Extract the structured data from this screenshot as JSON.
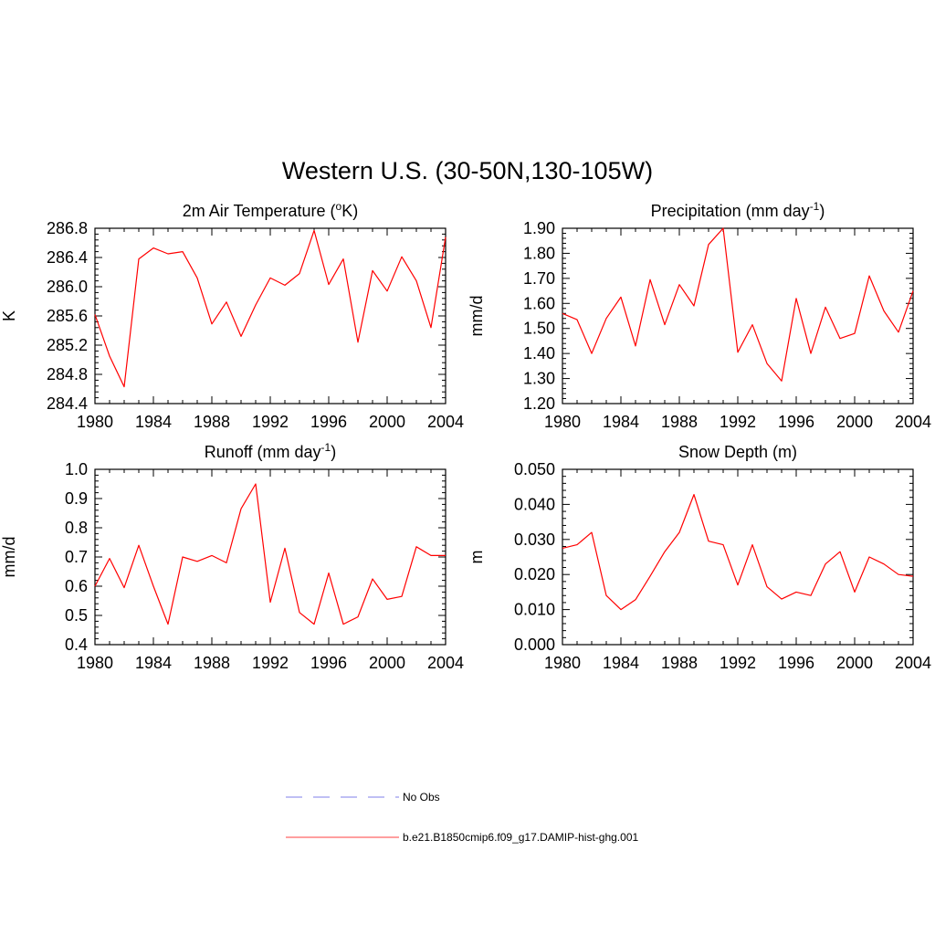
{
  "figure": {
    "title": "Western U.S. (30-50N,130-105W)"
  },
  "chart_data": [
    {
      "type": "line",
      "title": "2m Air Temperature (",
      "title_sup": "o",
      "title_tail": "K)",
      "ylabel": "K",
      "x": [
        1980,
        1981,
        1982,
        1983,
        1984,
        1985,
        1986,
        1987,
        1988,
        1989,
        1990,
        1991,
        1992,
        1993,
        1994,
        1995,
        1996,
        1997,
        1998,
        1999,
        2000,
        2001,
        2002,
        2003,
        2004
      ],
      "xlim": [
        1980,
        2004
      ],
      "xticks": [
        1980,
        1984,
        1988,
        1992,
        1996,
        2000,
        2004
      ],
      "ylim": [
        284.4,
        286.8
      ],
      "yticks": [
        "284.4",
        "284.8",
        "285.2",
        "285.6",
        "286.0",
        "286.4",
        "286.8"
      ],
      "series": [
        {
          "values": [
            285.62,
            285.05,
            284.63,
            286.38,
            286.53,
            286.45,
            286.48,
            286.12,
            285.49,
            285.79,
            285.32,
            285.75,
            286.12,
            286.02,
            286.18,
            286.77,
            286.03,
            286.38,
            285.24,
            286.22,
            285.94,
            286.41,
            286.08,
            285.44,
            286.68
          ],
          "color": "#ff0000"
        }
      ]
    },
    {
      "type": "line",
      "title": "Precipitation (mm day",
      "title_sup": "-1",
      "title_tail": ")",
      "ylabel": "mm/d",
      "x": [
        1980,
        1981,
        1982,
        1983,
        1984,
        1985,
        1986,
        1987,
        1988,
        1989,
        1990,
        1991,
        1992,
        1993,
        1994,
        1995,
        1996,
        1997,
        1998,
        1999,
        2000,
        2001,
        2002,
        2003,
        2004
      ],
      "xlim": [
        1980,
        2004
      ],
      "xticks": [
        1980,
        1984,
        1988,
        1992,
        1996,
        2000,
        2004
      ],
      "ylim": [
        1.2,
        1.9
      ],
      "yticks": [
        "1.20",
        "1.30",
        "1.40",
        "1.50",
        "1.60",
        "1.70",
        "1.80",
        "1.90"
      ],
      "series": [
        {
          "values": [
            1.56,
            1.535,
            1.4,
            1.54,
            1.625,
            1.43,
            1.695,
            1.515,
            1.675,
            1.59,
            1.835,
            1.9,
            1.405,
            1.515,
            1.36,
            1.29,
            1.62,
            1.4,
            1.585,
            1.46,
            1.48,
            1.71,
            1.57,
            1.485,
            1.65
          ],
          "color": "#ff0000"
        }
      ]
    },
    {
      "type": "line",
      "title": "Runoff (mm day",
      "title_sup": "-1",
      "title_tail": ")",
      "ylabel": "mm/d",
      "x": [
        1980,
        1981,
        1982,
        1983,
        1984,
        1985,
        1986,
        1987,
        1988,
        1989,
        1990,
        1991,
        1992,
        1993,
        1994,
        1995,
        1996,
        1997,
        1998,
        1999,
        2000,
        2001,
        2002,
        2003,
        2004
      ],
      "xlim": [
        1980,
        2004
      ],
      "xticks": [
        1980,
        1984,
        1988,
        1992,
        1996,
        2000,
        2004
      ],
      "ylim": [
        0.4,
        1.0
      ],
      "yticks": [
        "0.4",
        "0.5",
        "0.6",
        "0.7",
        "0.8",
        "0.9",
        "1.0"
      ],
      "series": [
        {
          "values": [
            0.6,
            0.695,
            0.595,
            0.74,
            0.6,
            0.47,
            0.7,
            0.685,
            0.705,
            0.68,
            0.865,
            0.95,
            0.545,
            0.73,
            0.51,
            0.47,
            0.645,
            0.47,
            0.495,
            0.625,
            0.555,
            0.565,
            0.735,
            0.705,
            0.705
          ],
          "color": "#ff0000"
        }
      ]
    },
    {
      "type": "line",
      "title": "Snow Depth (m)",
      "title_sup": "",
      "title_tail": "",
      "ylabel": "m",
      "x": [
        1980,
        1981,
        1982,
        1983,
        1984,
        1985,
        1986,
        1987,
        1988,
        1989,
        1990,
        1991,
        1992,
        1993,
        1994,
        1995,
        1996,
        1997,
        1998,
        1999,
        2000,
        2001,
        2002,
        2003,
        2004
      ],
      "xlim": [
        1980,
        2004
      ],
      "xticks": [
        1980,
        1984,
        1988,
        1992,
        1996,
        2000,
        2004
      ],
      "ylim": [
        0.0,
        0.05
      ],
      "yticks": [
        "0.000",
        "0.010",
        "0.020",
        "0.030",
        "0.040",
        "0.050"
      ],
      "series": [
        {
          "values": [
            0.0275,
            0.0285,
            0.032,
            0.014,
            0.01,
            0.0128,
            0.0195,
            0.0265,
            0.032,
            0.0428,
            0.0295,
            0.0285,
            0.017,
            0.0285,
            0.0165,
            0.013,
            0.015,
            0.014,
            0.023,
            0.0265,
            0.015,
            0.025,
            0.023,
            0.02,
            0.0195
          ],
          "color": "#ff0000"
        }
      ]
    }
  ],
  "legend": {
    "items": [
      {
        "label": "No Obs",
        "color": "#9999ee",
        "style": "dashed"
      },
      {
        "label": "b.e21.B1850cmip6.f09_g17.DAMIP-hist-ghg.001",
        "color": "#ff6666",
        "style": "solid"
      }
    ]
  }
}
